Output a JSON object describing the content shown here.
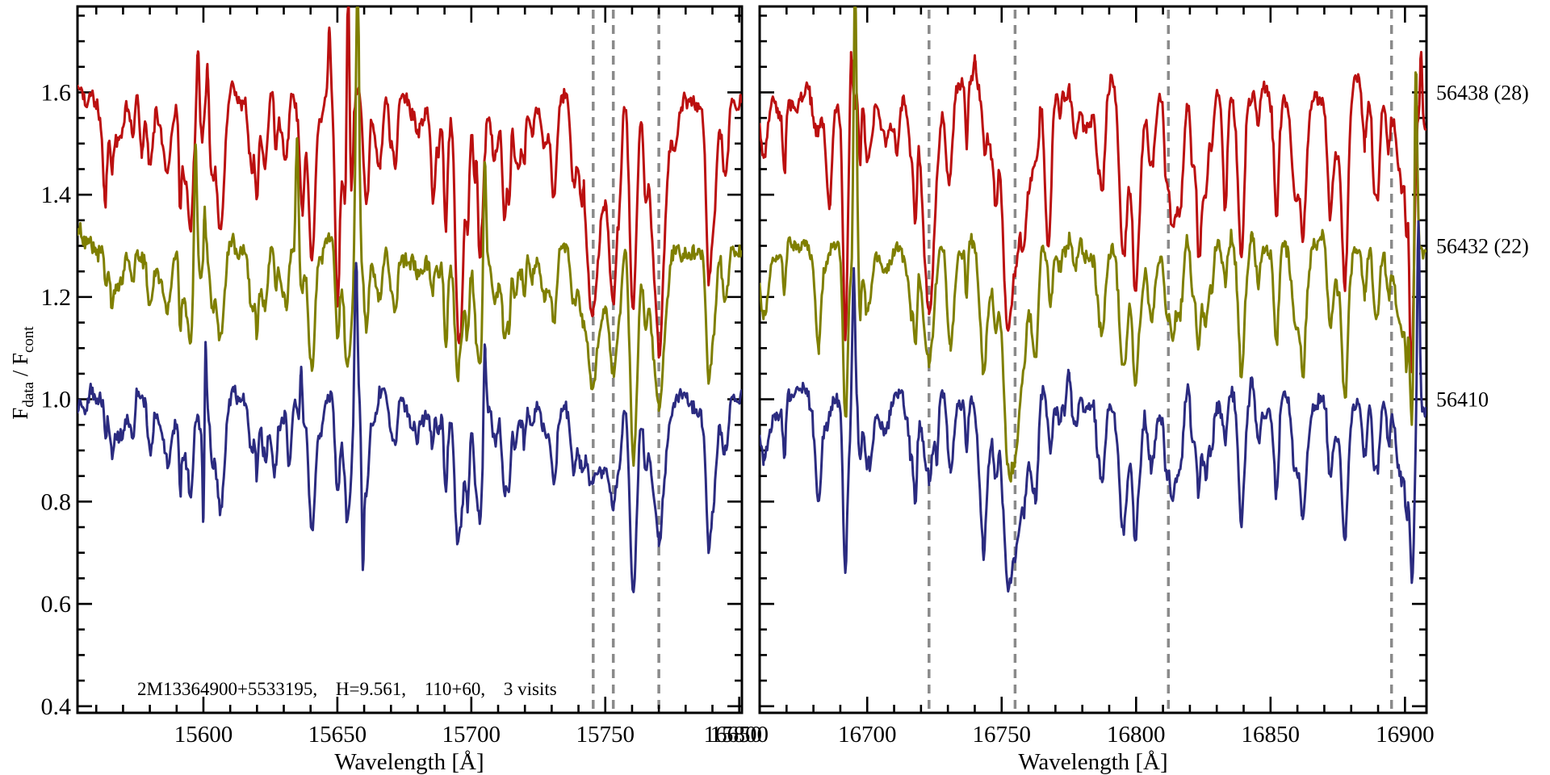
{
  "figure": {
    "background": "#ffffff",
    "frame_color": "#000000",
    "dashed_line_color": "#8a8a8a",
    "annotation": "2M13364900+5533195,   H=9.561,   110+60,   3 visits"
  },
  "chart_data": {
    "type": "line",
    "title": "",
    "xlabel": "Wavelength [Å]",
    "ylabel": "Fdata / Fcont",
    "ylabel_rich": [
      {
        "t": "F",
        "sub": false
      },
      {
        "t": "data",
        "sub": true
      },
      {
        "t": " / F",
        "sub": false
      },
      {
        "t": "cont",
        "sub": true
      }
    ],
    "ylim": [
      0.387,
      1.768
    ],
    "yticks": [
      0.4,
      0.6,
      0.8,
      1.0,
      1.2,
      1.4,
      1.6
    ],
    "ytick_labels": [
      "0.4",
      "0.6",
      "0.8",
      "1.0",
      "1.2",
      "1.4",
      "1.6"
    ],
    "y_minor_step": 0.05,
    "grid": false,
    "legend_position": "right-outside",
    "annotation_parts": [
      "2M13364900+5533195,",
      "H=9.561,",
      "110+60,",
      "3 visits"
    ],
    "panels": [
      {
        "name": "left",
        "xlabel": "Wavelength [Å]",
        "xlim": [
          15553,
          15801
        ],
        "xticks": [
          {
            "v": 15600,
            "label": "15600"
          },
          {
            "v": 15650,
            "label": "15650"
          },
          {
            "v": 15700,
            "label": "15700"
          },
          {
            "v": 15750,
            "label": "15750"
          },
          {
            "v": 15800,
            "label": "15800"
          }
        ],
        "x_minor_step": 10,
        "dashed_lines": [
          15745.5,
          15753,
          15770
        ]
      },
      {
        "name": "right",
        "xlabel": "Wavelength [Å]",
        "xlim": [
          16660,
          16908
        ],
        "xticks": [
          {
            "v": 16650,
            "label": "16650"
          },
          {
            "v": 16700,
            "label": "16700"
          },
          {
            "v": 16750,
            "label": "16750"
          },
          {
            "v": 16800,
            "label": "16800"
          },
          {
            "v": 16850,
            "label": "16850"
          },
          {
            "v": 16900,
            "label": "16900"
          }
        ],
        "x_minor_step": 10,
        "dashed_lines": [
          16723,
          16755,
          16812,
          16895
        ]
      }
    ],
    "series": [
      {
        "label": "56438 (28)",
        "color": "#bb1010",
        "offset": 0.6,
        "continuum": 1.6,
        "noise": 0.01,
        "forest_scale": 1.35,
        "seed": 11,
        "features": [
          {
            "absorptions": [
              [
                15745.5,
                0.36,
                2.0
              ],
              [
                15753,
                0.42,
                1.7
              ],
              [
                15770,
                0.46,
                2.4
              ],
              [
                15776,
                0.1,
                1.2
              ],
              [
                15650,
                0.16,
                0.9
              ],
              [
                15666,
                0.15,
                1.1
              ],
              [
                15696,
                0.17,
                1.0
              ],
              [
                15631,
                0.13,
                0.8
              ],
              [
                15637,
                0.13,
                0.8
              ],
              [
                15686,
                0.1,
                0.8
              ],
              [
                15718,
                0.09,
                0.9
              ],
              [
                15563,
                0.12,
                0.9
              ],
              [
                15577,
                0.1,
                0.8
              ]
            ],
            "emissions": [
              [
                15598,
                0.13,
                0.45
              ],
              [
                15601.5,
                0.09,
                0.4
              ],
              [
                15647,
                0.12,
                0.4
              ],
              [
                15654,
                0.55,
                0.5
              ],
              [
                15702,
                0.13,
                0.4
              ],
              [
                15742,
                0.06,
                0.35
              ]
            ]
          },
          {
            "absorptions": [
              [
                16661.5,
                0.14,
                1.4
              ],
              [
                16686,
                0.17,
                0.9
              ],
              [
                16723,
                0.42,
                2.0
              ],
              [
                16711,
                0.1,
                0.9
              ],
              [
                16730.5,
                0.14,
                1.2
              ],
              [
                16755,
                0.35,
                2.6
              ],
              [
                16767,
                0.22,
                0.9
              ],
              [
                16824,
                0.11,
                0.8
              ],
              [
                16833,
                0.1,
                0.8
              ],
              [
                16852,
                0.13,
                0.9
              ],
              [
                16862,
                0.19,
                0.9
              ],
              [
                16872,
                0.15,
                0.9
              ],
              [
                16878,
                0.13,
                0.8
              ],
              [
                16885,
                0.11,
                0.8
              ],
              [
                16902,
                0.15,
                0.5
              ]
            ],
            "emissions": [
              [
                16694,
                0.15,
                0.45
              ],
              [
                16906,
                0.12,
                0.4
              ],
              [
                16740,
                0.05,
                0.4
              ]
            ]
          }
        ]
      },
      {
        "label": "56432 (22)",
        "color": "#7f7f00",
        "offset": 0.3,
        "continuum": 1.3,
        "noise": 0.01,
        "forest_scale": 1.0,
        "seed": 22,
        "features": [
          {
            "absorptions": [
              [
                15745.5,
                0.22,
                1.9
              ],
              [
                15753,
                0.26,
                1.7
              ],
              [
                15770,
                0.27,
                2.4
              ],
              [
                15761,
                0.1,
                1.3
              ],
              [
                15631,
                0.1,
                0.8
              ],
              [
                15666,
                0.1,
                1.0
              ]
            ],
            "emissions": [
              [
                15597,
                0.24,
                0.5
              ],
              [
                15635,
                0.24,
                0.5
              ],
              [
                15657.5,
                0.6,
                0.55
              ],
              [
                15705,
                0.25,
                0.5
              ],
              [
                15600.5,
                0.1,
                0.4
              ]
            ]
          },
          {
            "absorptions": [
              [
                16661.5,
                0.12,
                1.4
              ],
              [
                16682,
                0.13,
                0.9
              ],
              [
                16723,
                0.25,
                1.9
              ],
              [
                16731,
                0.18,
                1.3
              ],
              [
                16743,
                0.2,
                1.4
              ],
              [
                16755,
                0.39,
                2.3
              ],
              [
                16762.5,
                0.14,
                1.1
              ],
              [
                16852,
                0.13,
                0.9
              ],
              [
                16862,
                0.16,
                0.9
              ],
              [
                16872,
                0.13,
                0.9
              ],
              [
                16878,
                0.11,
                0.8
              ],
              [
                16885,
                0.1,
                0.8
              ]
            ],
            "emissions": [
              [
                16695.5,
                0.55,
                0.55
              ],
              [
                16904,
                0.45,
                0.5
              ],
              [
                16843,
                0.07,
                0.7
              ]
            ]
          }
        ]
      },
      {
        "label": "56410",
        "color": "#2b2b80",
        "offset": 0.0,
        "continuum": 1.0,
        "noise": 0.01,
        "forest_scale": 1.0,
        "seed": 33,
        "features": [
          {
            "absorptions": [
              [
                15745.5,
                0.12,
                1.9
              ],
              [
                15753,
                0.21,
                1.7
              ],
              [
                15770,
                0.23,
                2.4
              ],
              [
                15761,
                0.09,
                1.3
              ],
              [
                15600,
                0.2,
                0.35
              ],
              [
                15659.5,
                0.24,
                0.4
              ],
              [
                15626,
                0.1,
                0.8
              ],
              [
                15632,
                0.14,
                0.8
              ]
            ],
            "emissions": [
              [
                15600.8,
                0.14,
                0.35
              ],
              [
                15657,
                0.28,
                0.5
              ],
              [
                15705,
                0.18,
                0.45
              ],
              [
                15636.5,
                0.12,
                0.4
              ]
            ]
          },
          {
            "absorptions": [
              [
                16661.5,
                0.1,
                1.4
              ],
              [
                16682,
                0.13,
                0.9
              ],
              [
                16723,
                0.16,
                1.7
              ],
              [
                16726,
                0.1,
                0.5
              ],
              [
                16731,
                0.14,
                1.2
              ],
              [
                16743,
                0.24,
                1.4
              ],
              [
                16755,
                0.27,
                2.3
              ],
              [
                16762.5,
                0.12,
                1.1
              ],
              [
                16852,
                0.12,
                0.9
              ],
              [
                16862,
                0.15,
                0.9
              ],
              [
                16872,
                0.12,
                0.9
              ],
              [
                16878,
                0.1,
                0.8
              ],
              [
                16885,
                0.09,
                0.8
              ]
            ],
            "emissions": [
              [
                16695,
                0.28,
                0.5
              ],
              [
                16905,
                0.38,
                0.45
              ],
              [
                16843,
                0.08,
                0.7
              ],
              [
                16775,
                0.05,
                0.6
              ]
            ]
          }
        ]
      }
    ],
    "forest": {
      "depth_min": 0.02,
      "depth_max": 0.15,
      "width_min": 0.45,
      "width_max": 1.45,
      "panel_seeds": [
        101,
        202
      ],
      "panel_counts": [
        115,
        95
      ]
    }
  }
}
